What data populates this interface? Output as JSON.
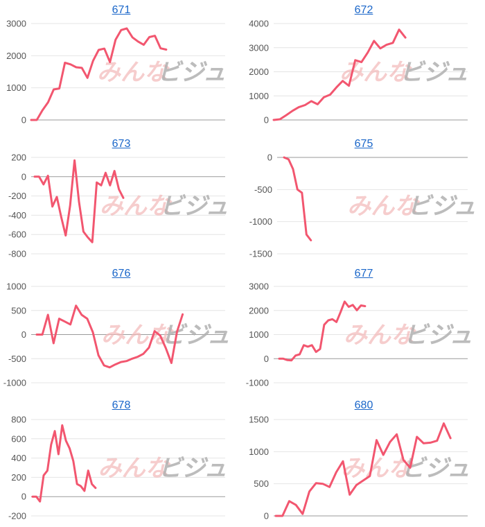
{
  "watermark": {
    "left": "みんな",
    "right": "ビジュ"
  },
  "colors": {
    "line": "#f2566f",
    "grid": "#e4e4e4",
    "axis": "#9a9a9a",
    "title": "#1a66c9",
    "tick": "#555555",
    "watermark_left": "#f2b8b8",
    "watermark_right": "#b0b0b0"
  },
  "chart_data": [
    {
      "type": "line",
      "title": "671",
      "yticks": [
        0,
        1000,
        2000,
        3000
      ],
      "ylim": [
        0,
        3000
      ],
      "grid": true,
      "values": [
        0,
        0,
        300,
        550,
        950,
        980,
        1780,
        1730,
        1640,
        1620,
        1310,
        1840,
        2180,
        2220,
        1800,
        2500,
        2800,
        2850,
        2570,
        2440,
        2340,
        2580,
        2620,
        2230,
        2190
      ]
    },
    {
      "type": "line",
      "title": "672",
      "yticks": [
        0,
        1000,
        2000,
        3000,
        4000
      ],
      "ylim": [
        0,
        4000
      ],
      "grid": true,
      "values": [
        0,
        30,
        200,
        380,
        530,
        620,
        780,
        650,
        940,
        1050,
        1350,
        1620,
        1420,
        2480,
        2400,
        2800,
        3280,
        2970,
        3120,
        3200,
        3750,
        3420
      ]
    },
    {
      "type": "line",
      "title": "673",
      "yticks": [
        -800,
        -600,
        -400,
        -200,
        0,
        200
      ],
      "ylim": [
        -800,
        200
      ],
      "grid": true,
      "values": [
        0,
        0,
        -80,
        10,
        -310,
        -210,
        -420,
        -610,
        -300,
        170,
        -260,
        -570,
        -630,
        -680,
        -60,
        -90,
        40,
        -90,
        60,
        -130,
        -220
      ]
    },
    {
      "type": "line",
      "title": "675",
      "yticks": [
        -1500,
        -1000,
        -500,
        0
      ],
      "ylim": [
        -1500,
        0
      ],
      "grid": true,
      "values": [
        0,
        -30,
        -180,
        -500,
        -550,
        -1200,
        -1290
      ]
    },
    {
      "type": "line",
      "title": "676",
      "yticks": [
        -1000,
        -500,
        0,
        500,
        1000
      ],
      "ylim": [
        -1000,
        1000
      ],
      "grid": true,
      "values": [
        0,
        0,
        410,
        -180,
        330,
        270,
        210,
        600,
        410,
        330,
        50,
        -430,
        -640,
        -680,
        -620,
        -570,
        -550,
        -500,
        -460,
        -400,
        -270,
        70,
        -20,
        -280,
        -590,
        60,
        420
      ]
    },
    {
      "type": "line",
      "title": "677",
      "yticks": [
        -1000,
        0,
        1000,
        2000,
        3000
      ],
      "ylim": [
        -1000,
        3000
      ],
      "grid": true,
      "values": [
        0,
        0,
        -60,
        -70,
        130,
        180,
        560,
        500,
        560,
        280,
        400,
        1410,
        1590,
        1640,
        1520,
        1930,
        2370,
        2150,
        2230,
        2010,
        2210,
        2180
      ]
    },
    {
      "type": "line",
      "title": "678",
      "yticks": [
        -200,
        0,
        200,
        400,
        600,
        800
      ],
      "ylim": [
        -200,
        800
      ],
      "grid": true,
      "values": [
        0,
        0,
        -50,
        220,
        270,
        540,
        680,
        440,
        740,
        580,
        500,
        370,
        130,
        110,
        60,
        270,
        130,
        90
      ]
    },
    {
      "type": "line",
      "title": "680",
      "yticks": [
        0,
        500,
        1000,
        1500
      ],
      "ylim": [
        0,
        1500
      ],
      "grid": true,
      "values": [
        0,
        0,
        230,
        170,
        30,
        380,
        510,
        500,
        450,
        680,
        850,
        330,
        480,
        550,
        620,
        1180,
        950,
        1150,
        1270,
        870,
        750,
        1230,
        1130,
        1140,
        1170,
        1440,
        1210
      ]
    }
  ]
}
